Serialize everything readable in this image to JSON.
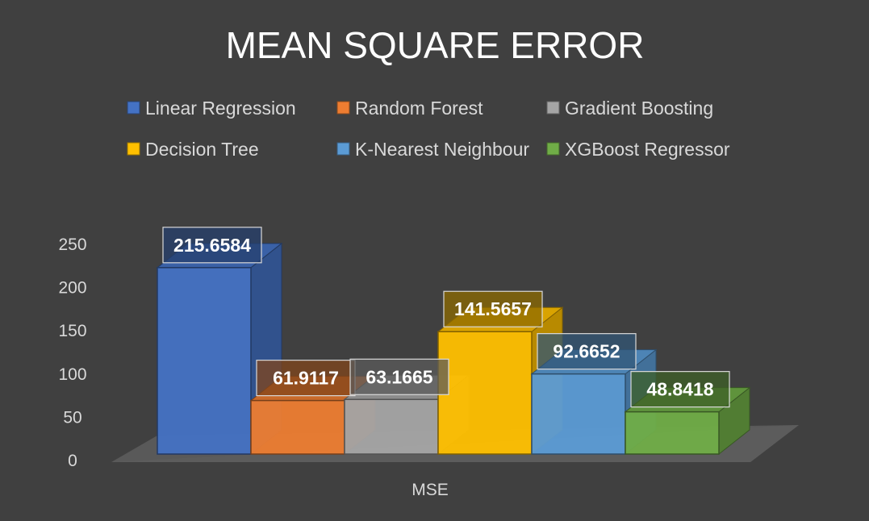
{
  "chart_data": {
    "type": "bar",
    "title": "MEAN SQUARE ERROR",
    "categories": [
      "MSE"
    ],
    "series": [
      {
        "name": "Linear Regression",
        "values": [
          215.6584
        ],
        "color": "#4472c4"
      },
      {
        "name": "Random Forest",
        "values": [
          61.9117
        ],
        "color": "#ed7d31"
      },
      {
        "name": "Gradient Boosting",
        "values": [
          63.1665
        ],
        "color": "#a5a5a5"
      },
      {
        "name": "Decision Tree",
        "values": [
          141.5657
        ],
        "color": "#ffc000"
      },
      {
        "name": "K-Nearest Neighbour",
        "values": [
          92.6652
        ],
        "color": "#5b9bd5"
      },
      {
        "name": "XGBoost Regressor",
        "values": [
          48.8418
        ],
        "color": "#70ad47"
      }
    ],
    "data_labels": [
      "215.6584",
      "61.9117",
      "63.1665",
      "141.5657",
      "92.6652",
      "48.8418"
    ],
    "yticks": [
      "0",
      "50",
      "100",
      "150",
      "200",
      "250"
    ],
    "ylim": [
      0,
      250
    ],
    "xlabel": "",
    "ylabel": "",
    "legend_position": "top",
    "grid": false,
    "style": "3d-column"
  }
}
